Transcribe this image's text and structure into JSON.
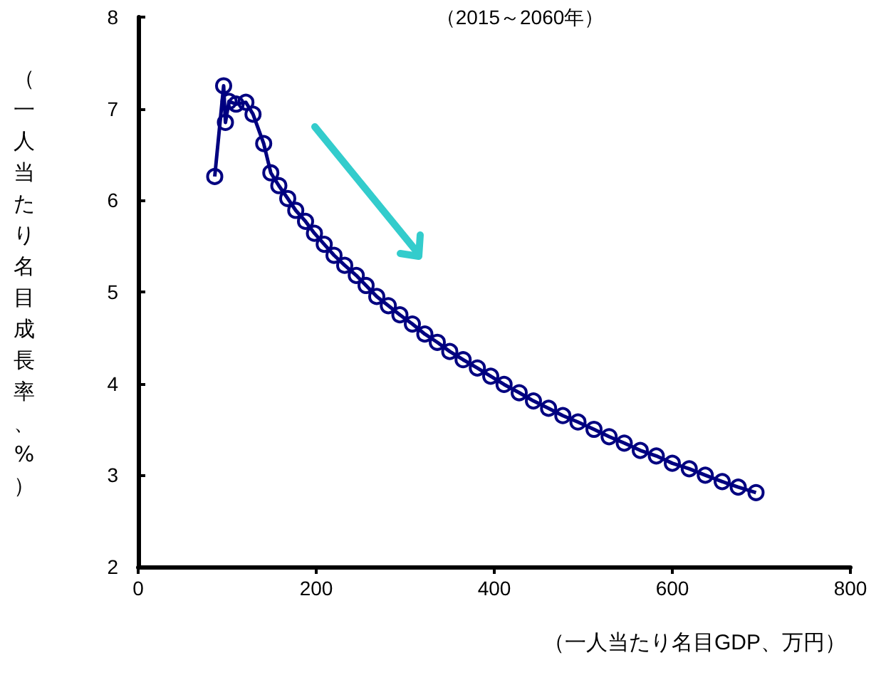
{
  "chart_data": {
    "type": "line",
    "title": "（2015～2060年）",
    "xlabel": "（一人当たり名目GDP、万円）",
    "ylabel": "（一人当たり名目成長率、%）",
    "xlim": [
      0,
      800
    ],
    "xticks": [
      0,
      200,
      400,
      600,
      800
    ],
    "ylim": [
      2,
      8
    ],
    "yticks": [
      2,
      3,
      4,
      5,
      6,
      7,
      8
    ],
    "grid": false,
    "marker": "circle",
    "line_style": "solid",
    "series": [
      {
        "color": "#000080",
        "x": [
          86,
          96,
          98,
          102,
          110,
          121,
          129,
          141,
          149,
          158,
          168,
          177,
          188,
          198,
          209,
          220,
          232,
          245,
          256,
          268,
          281,
          294,
          308,
          322,
          336,
          350,
          365,
          381,
          396,
          411,
          428,
          444,
          461,
          477,
          494,
          512,
          529,
          546,
          564,
          582,
          600,
          619,
          637,
          656,
          674,
          694
        ],
        "values": [
          6.26,
          7.25,
          6.85,
          7.08,
          7.05,
          7.07,
          6.94,
          6.62,
          6.3,
          6.16,
          6.02,
          5.89,
          5.77,
          5.64,
          5.52,
          5.4,
          5.29,
          5.18,
          5.07,
          4.95,
          4.85,
          4.75,
          4.65,
          4.54,
          4.45,
          4.35,
          4.26,
          4.17,
          4.08,
          3.99,
          3.9,
          3.81,
          3.73,
          3.65,
          3.58,
          3.5,
          3.42,
          3.35,
          3.27,
          3.21,
          3.13,
          3.07,
          3.0,
          2.93,
          2.87,
          2.81
        ]
      }
    ]
  }
}
